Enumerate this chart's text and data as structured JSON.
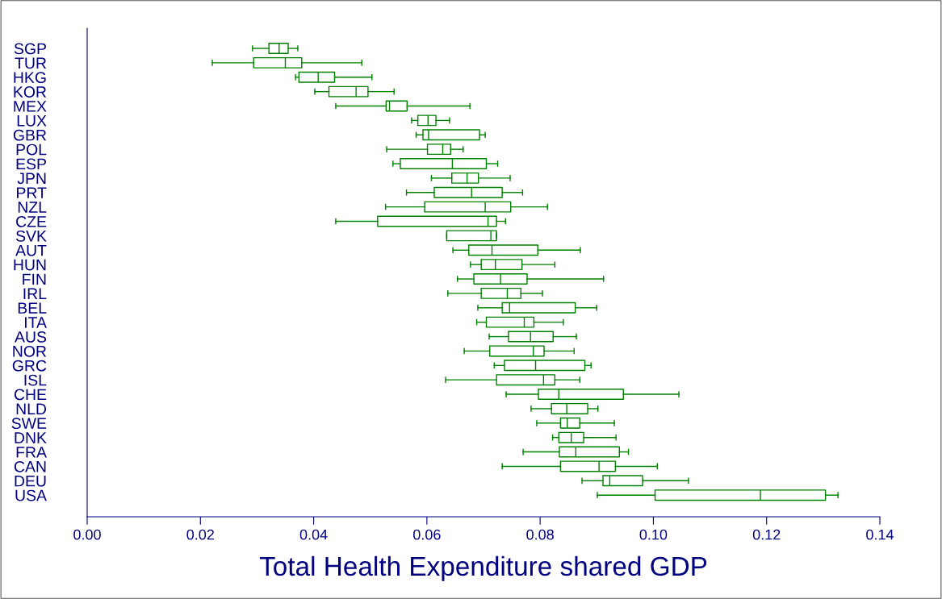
{
  "chart_data": {
    "type": "box",
    "orientation": "horizontal",
    "xlabel": "Total Health Expenditure shared GDP",
    "color": "#008000",
    "grid": false,
    "xlim": [
      0,
      0.14
    ],
    "xticks": [
      {
        "value": 0,
        "label": "0.00"
      },
      {
        "value": 0.02,
        "label": "0.02"
      },
      {
        "value": 0.04,
        "label": "0.04"
      },
      {
        "value": 0.06,
        "label": "0.06"
      },
      {
        "value": 0.08,
        "label": "0.08"
      },
      {
        "value": 0.1,
        "label": "0.10"
      },
      {
        "value": 0.12,
        "label": "0.12"
      },
      {
        "value": 0.14,
        "label": "0.14"
      }
    ],
    "categories": [
      "SGP",
      "TUR",
      "HKG",
      "KOR",
      "MEX",
      "LUX",
      "GBR",
      "POL",
      "ESP",
      "JPN",
      "PRT",
      "NZL",
      "CZE",
      "SVK",
      "AUT",
      "HUN",
      "FIN",
      "IRL",
      "BEL",
      "ITA",
      "AUS",
      "NOR",
      "GRC",
      "ISL",
      "CHE",
      "NLD",
      "SWE",
      "DNK",
      "FRA",
      "CAN",
      "DEU",
      "USA"
    ],
    "boxes": [
      {
        "low": 0.0292,
        "q1": 0.0321,
        "median": 0.0339,
        "q3": 0.0355,
        "high": 0.0372
      },
      {
        "low": 0.0221,
        "q1": 0.0294,
        "median": 0.035,
        "q3": 0.0379,
        "high": 0.0485
      },
      {
        "low": 0.0368,
        "q1": 0.0374,
        "median": 0.0408,
        "q3": 0.0437,
        "high": 0.0503
      },
      {
        "low": 0.0402,
        "q1": 0.0427,
        "median": 0.0475,
        "q3": 0.0496,
        "high": 0.0542
      },
      {
        "low": 0.0439,
        "q1": 0.0528,
        "median": 0.0534,
        "q3": 0.0565,
        "high": 0.0676
      },
      {
        "low": 0.0573,
        "q1": 0.0584,
        "median": 0.0602,
        "q3": 0.0616,
        "high": 0.064
      },
      {
        "low": 0.0581,
        "q1": 0.0593,
        "median": 0.0603,
        "q3": 0.0693,
        "high": 0.0703
      },
      {
        "low": 0.0529,
        "q1": 0.0601,
        "median": 0.0628,
        "q3": 0.0642,
        "high": 0.0664
      },
      {
        "low": 0.054,
        "q1": 0.0553,
        "median": 0.0645,
        "q3": 0.0705,
        "high": 0.0725
      },
      {
        "low": 0.0608,
        "q1": 0.0644,
        "median": 0.0671,
        "q3": 0.0691,
        "high": 0.0747
      },
      {
        "low": 0.0564,
        "q1": 0.0613,
        "median": 0.0679,
        "q3": 0.0733,
        "high": 0.0769
      },
      {
        "low": 0.0527,
        "q1": 0.0596,
        "median": 0.0703,
        "q3": 0.0748,
        "high": 0.0813
      },
      {
        "low": 0.0439,
        "q1": 0.0513,
        "median": 0.0708,
        "q3": 0.0723,
        "high": 0.0739
      },
      {
        "low": 0.0635,
        "q1": 0.0635,
        "median": 0.0713,
        "q3": 0.0723,
        "high": 0.0723
      },
      {
        "low": 0.0646,
        "q1": 0.0674,
        "median": 0.0715,
        "q3": 0.0796,
        "high": 0.0871
      },
      {
        "low": 0.0677,
        "q1": 0.0696,
        "median": 0.0721,
        "q3": 0.0768,
        "high": 0.0826
      },
      {
        "low": 0.0654,
        "q1": 0.0683,
        "median": 0.073,
        "q3": 0.0777,
        "high": 0.0912
      },
      {
        "low": 0.0637,
        "q1": 0.0696,
        "median": 0.0742,
        "q3": 0.0766,
        "high": 0.0804
      },
      {
        "low": 0.069,
        "q1": 0.0733,
        "median": 0.0746,
        "q3": 0.0862,
        "high": 0.09
      },
      {
        "low": 0.0688,
        "q1": 0.0705,
        "median": 0.0772,
        "q3": 0.0789,
        "high": 0.0841
      },
      {
        "low": 0.071,
        "q1": 0.0744,
        "median": 0.0783,
        "q3": 0.0823,
        "high": 0.0864
      },
      {
        "low": 0.0666,
        "q1": 0.0711,
        "median": 0.0788,
        "q3": 0.0807,
        "high": 0.086
      },
      {
        "low": 0.0719,
        "q1": 0.0737,
        "median": 0.0792,
        "q3": 0.0879,
        "high": 0.089
      },
      {
        "low": 0.0633,
        "q1": 0.0723,
        "median": 0.0806,
        "q3": 0.0826,
        "high": 0.087
      },
      {
        "low": 0.074,
        "q1": 0.0797,
        "median": 0.0833,
        "q3": 0.0947,
        "high": 0.1045
      },
      {
        "low": 0.0784,
        "q1": 0.082,
        "median": 0.0847,
        "q3": 0.0884,
        "high": 0.0902
      },
      {
        "low": 0.0794,
        "q1": 0.0836,
        "median": 0.0848,
        "q3": 0.087,
        "high": 0.0931
      },
      {
        "low": 0.0822,
        "q1": 0.0833,
        "median": 0.0855,
        "q3": 0.0877,
        "high": 0.0934
      },
      {
        "low": 0.077,
        "q1": 0.0834,
        "median": 0.0863,
        "q3": 0.094,
        "high": 0.0956
      },
      {
        "low": 0.0733,
        "q1": 0.0836,
        "median": 0.0904,
        "q3": 0.0933,
        "high": 0.1007
      },
      {
        "low": 0.0874,
        "q1": 0.0911,
        "median": 0.0923,
        "q3": 0.0981,
        "high": 0.1062
      },
      {
        "low": 0.0901,
        "q1": 0.1003,
        "median": 0.1189,
        "q3": 0.1304,
        "high": 0.1326
      }
    ]
  }
}
